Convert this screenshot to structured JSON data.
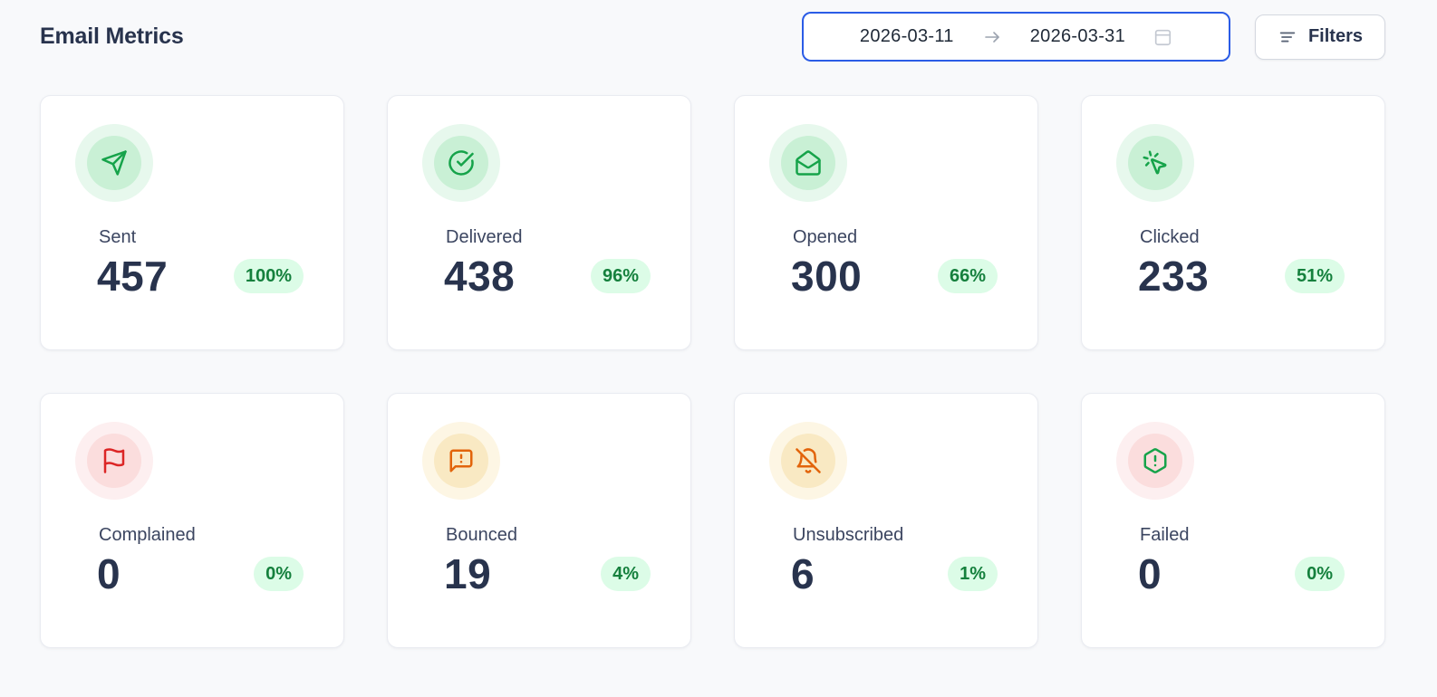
{
  "page": {
    "title": "Email Metrics"
  },
  "toolbar": {
    "date_range": {
      "start": "2026-03-11",
      "end": "2026-03-31",
      "arrow_icon": "arrow-right-icon",
      "calendar_icon": "calendar-icon"
    },
    "filters": {
      "label": "Filters",
      "icon": "filter-lines-icon"
    }
  },
  "colors": {
    "accent_green": "#16a34a",
    "accent_red": "#dc2626",
    "accent_orange": "#e2640b",
    "badge_bg": "#dcfce7",
    "badge_text": "#15803d",
    "focus_blue": "#2b5ce6",
    "page_bg": "#f8f9fb",
    "card_bg": "#ffffff"
  },
  "cards": [
    {
      "label": "Sent",
      "value": "457",
      "percent": "100%",
      "icon": "send-icon",
      "theme": "green"
    },
    {
      "label": "Delivered",
      "value": "438",
      "percent": "96%",
      "icon": "check-circle-icon",
      "theme": "green"
    },
    {
      "label": "Opened",
      "value": "300",
      "percent": "66%",
      "icon": "mail-open-icon",
      "theme": "green"
    },
    {
      "label": "Clicked",
      "value": "233",
      "percent": "51%",
      "icon": "pointer-click-icon",
      "theme": "green"
    },
    {
      "label": "Complained",
      "value": "0",
      "percent": "0%",
      "icon": "flag-icon",
      "theme": "red"
    },
    {
      "label": "Bounced",
      "value": "19",
      "percent": "4%",
      "icon": "message-warning-icon",
      "theme": "amber"
    },
    {
      "label": "Unsubscribed",
      "value": "6",
      "percent": "1%",
      "icon": "bell-off-icon",
      "theme": "amber"
    },
    {
      "label": "Failed",
      "value": "0",
      "percent": "0%",
      "icon": "hexagon-alert-icon",
      "theme": "green-on-red"
    }
  ]
}
